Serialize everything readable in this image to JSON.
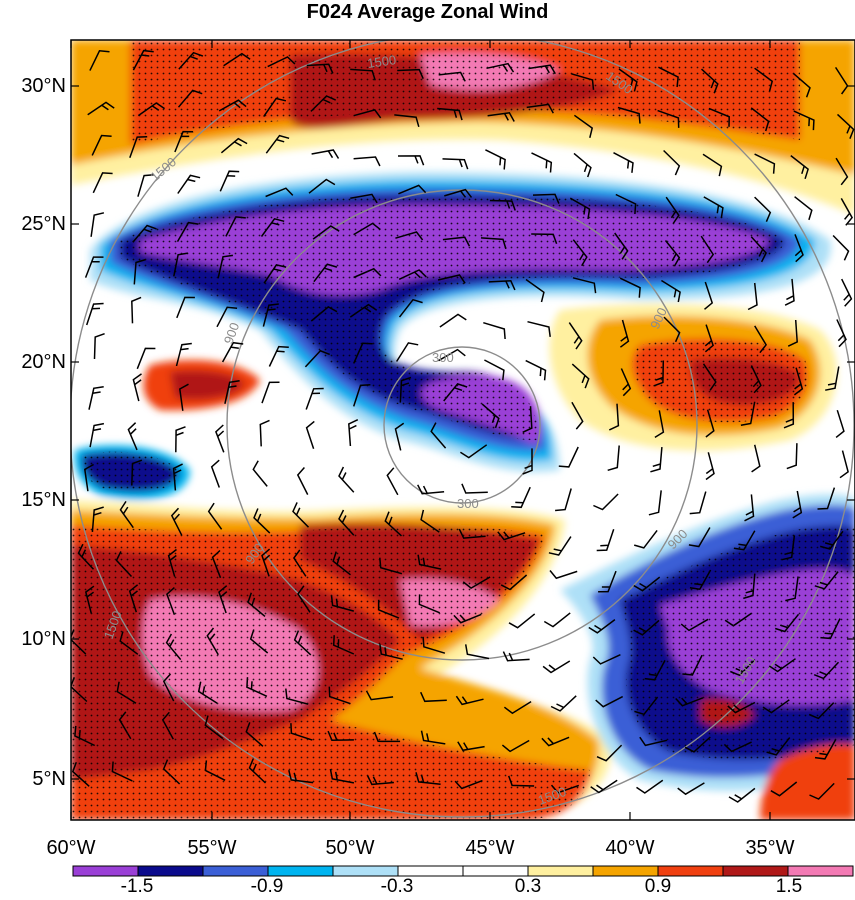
{
  "title": "F024 Average Zonal Wind",
  "latitude_labels": [
    "30°N",
    "25°N",
    "20°N",
    "15°N",
    "10°N",
    "5°N"
  ],
  "longitude_labels": [
    "60°W",
    "55°W",
    "50°W",
    "45°W",
    "40°W",
    "35°W"
  ],
  "colorbar": {
    "labels": [
      "-1.5",
      "-0.9",
      "-0.3",
      "0.3",
      "0.9",
      "1.5"
    ],
    "colors": [
      "#9a3fd6",
      "#0a0a8c",
      "#3b5fd6",
      "#00b4f0",
      "#aee0f7",
      "#ffffff",
      "#ffffff",
      "#fff0a0",
      "#f5a400",
      "#f04010",
      "#b01818",
      "#f37ab4"
    ]
  },
  "contour_labels": [
    "300",
    "300",
    "900",
    "900",
    "900",
    "900",
    "1500",
    "1500",
    "1500",
    "1500",
    "1500",
    "1500"
  ],
  "map": {
    "lon_range": [
      -60,
      -32
    ],
    "lat_range": [
      3.5,
      31.5
    ],
    "center": [
      -45.5,
      17.6
    ],
    "range_rings": [
      300,
      900,
      1500
    ]
  }
}
